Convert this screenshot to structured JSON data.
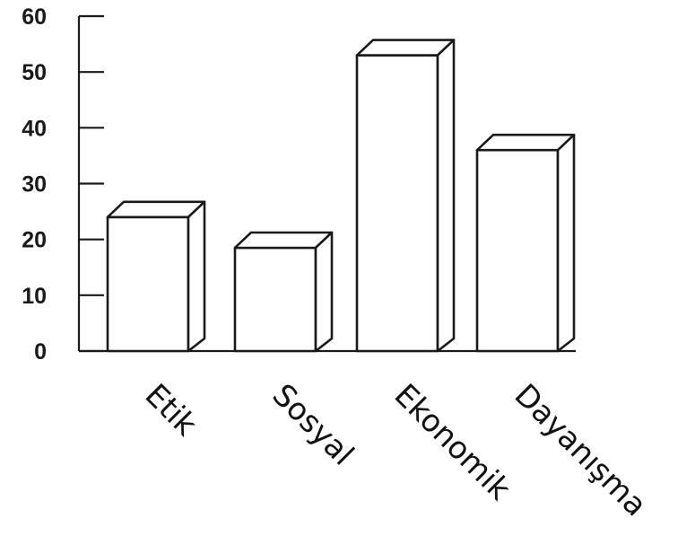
{
  "chart_data": {
    "type": "bar",
    "categories": [
      "Etik",
      "Sosyal",
      "Ekonomik",
      "Dayanışma"
    ],
    "values": [
      24,
      18.5,
      53,
      36
    ],
    "title": "",
    "xlabel": "",
    "ylabel": "",
    "ylim": [
      0,
      60
    ],
    "yticks": [
      0,
      10,
      20,
      30,
      40,
      50,
      60
    ],
    "grid": false,
    "legend": "none",
    "style": "3d-outline"
  }
}
